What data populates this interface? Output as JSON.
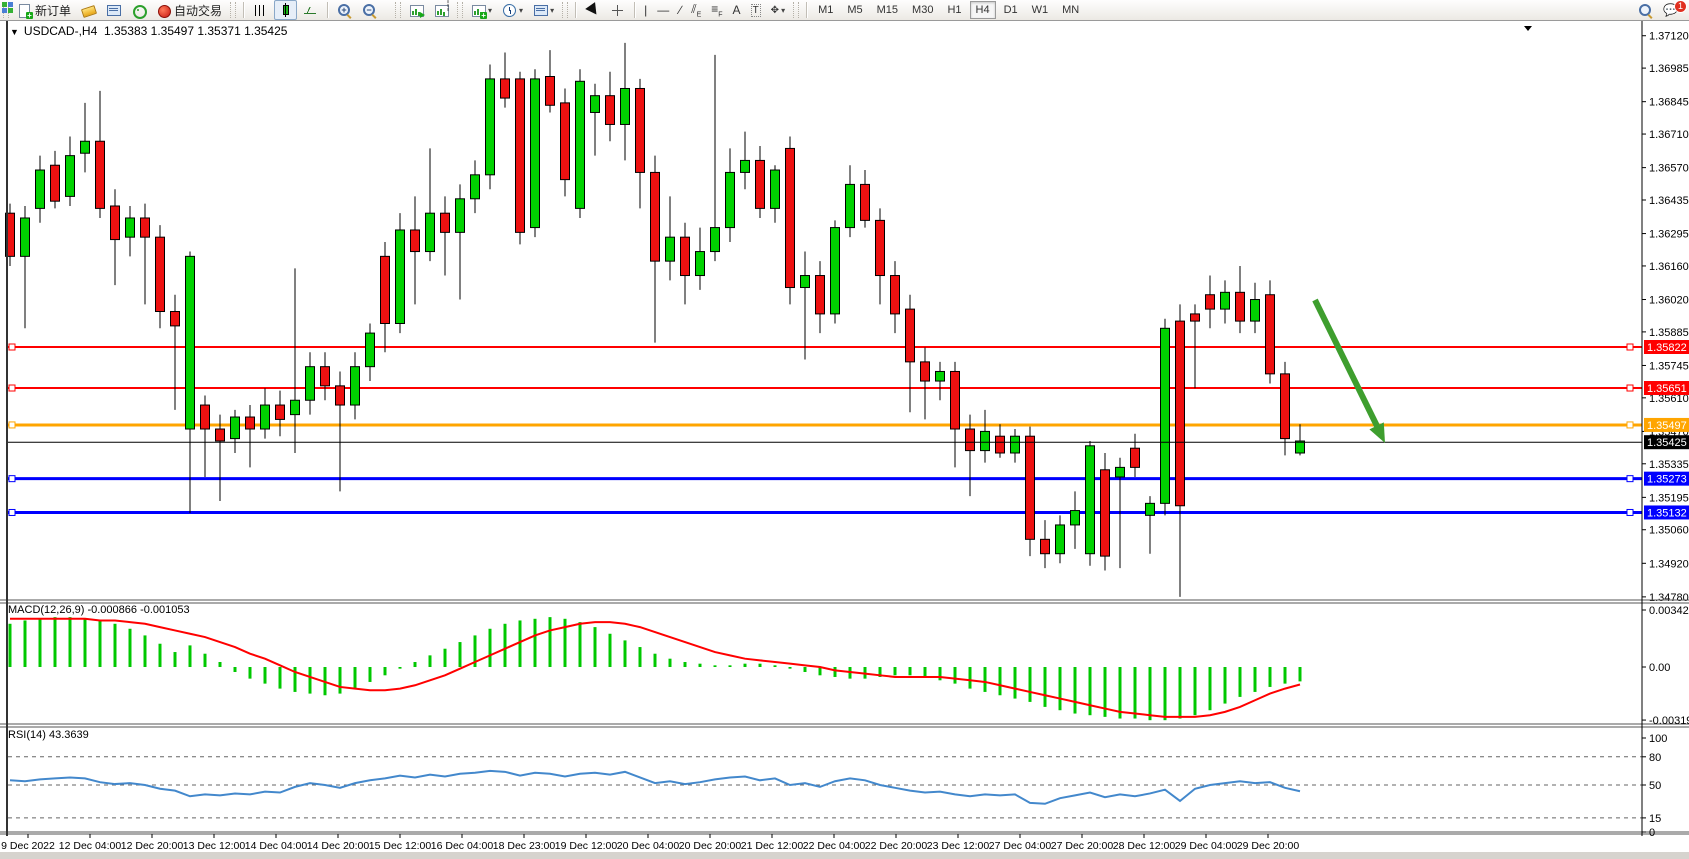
{
  "toolbar": {
    "new_order_label": "新订单",
    "autotrading_label": "自动交易",
    "timeframes": [
      "M1",
      "M5",
      "M15",
      "M30",
      "H1",
      "H4",
      "D1",
      "W1",
      "MN"
    ],
    "active_timeframe": "H4",
    "chat_badge": "1",
    "icons": [
      "new-order-icon",
      "ticket-icon",
      "charts-window-icon",
      "navigator-icon",
      "autotrading-icon",
      "chart-bars-icon",
      "chart-candles-icon",
      "chart-line-icon",
      "zoom-in-icon",
      "zoom-out-icon",
      "tile-windows-icon",
      "indicators-icon",
      "periods-clock-icon",
      "template-icon",
      "cursor-icon",
      "crosshair-icon",
      "vline-icon",
      "hline-icon",
      "trendline-icon",
      "channel-icon",
      "fibonacci-icon",
      "text-icon",
      "text-label-icon",
      "arrows-icon",
      "search-icon",
      "chat-icon"
    ]
  },
  "chart": {
    "collapse_glyph": "▼",
    "title_symbol": "USDCAD-,H4",
    "title_ohlc": "1.35383 1.35497 1.35371 1.35425",
    "macd_label": "MACD(12,26,9) -0.000866 -0.001053",
    "rsi_label": "RSI(14) 43.3639"
  },
  "chart_data": {
    "type": "candlestick",
    "symbol": "USDCAD",
    "period": "H4",
    "current_ohlc": {
      "open": "1.35383",
      "high": "1.35497",
      "low": "1.35371",
      "close": "1.35425"
    },
    "colors": {
      "up": "#00d200",
      "down": "#ee1111",
      "wick": "#000000",
      "macd_hist": "#00c800",
      "macd_signal": "#ff0000",
      "rsi_line": "#4388cc",
      "arrow": "#3e9e2e"
    },
    "price_axis_ticks": [
      "1.37120",
      "1.36985",
      "1.36845",
      "1.36710",
      "1.36570",
      "1.36435",
      "1.36295",
      "1.36160",
      "1.36020",
      "1.35885",
      "1.35745",
      "1.35610",
      "1.35470",
      "1.35335",
      "1.35195",
      "1.35060",
      "1.34920",
      "1.34780"
    ],
    "hlines": [
      {
        "label": "1.35822",
        "color": "#ff0000",
        "width": 2,
        "handles": true
      },
      {
        "label": "1.35651",
        "color": "#ff0000",
        "width": 2,
        "handles": true
      },
      {
        "label": "1.35497",
        "color": "#ffa500",
        "width": 3,
        "handles": true
      },
      {
        "label": "1.35273",
        "color": "#0000ff",
        "width": 3,
        "handles": true
      },
      {
        "label": "1.35132",
        "color": "#0000ff",
        "width": 3,
        "handles": true
      }
    ],
    "current_price_line": {
      "label": "1.35425",
      "color": "#000000"
    },
    "candles_ohlc": [
      [
        1.3638,
        1.3642,
        1.3616,
        1.362
      ],
      [
        1.362,
        1.3641,
        1.359,
        1.3636
      ],
      [
        1.364,
        1.3662,
        1.3634,
        1.3656
      ],
      [
        1.3658,
        1.3664,
        1.364,
        1.3643
      ],
      [
        1.3645,
        1.367,
        1.3641,
        1.3662
      ],
      [
        1.3663,
        1.3684,
        1.3655,
        1.3668
      ],
      [
        1.3668,
        1.3689,
        1.3636,
        1.364
      ],
      [
        1.3641,
        1.3648,
        1.3608,
        1.3627
      ],
      [
        1.3628,
        1.3641,
        1.362,
        1.3636
      ],
      [
        1.3636,
        1.3642,
        1.36,
        1.3628
      ],
      [
        1.3628,
        1.3633,
        1.359,
        1.3597
      ],
      [
        1.3597,
        1.3604,
        1.3556,
        1.3591
      ],
      [
        1.3548,
        1.3622,
        1.3513,
        1.362
      ],
      [
        1.3558,
        1.3562,
        1.3528,
        1.3548
      ],
      [
        1.3548,
        1.3554,
        1.3518,
        1.3543
      ],
      [
        1.3544,
        1.3556,
        1.3538,
        1.3553
      ],
      [
        1.3553,
        1.3558,
        1.3532,
        1.3548
      ],
      [
        1.3548,
        1.3565,
        1.3544,
        1.3558
      ],
      [
        1.3558,
        1.3564,
        1.3545,
        1.3552
      ],
      [
        1.3554,
        1.3615,
        1.3538,
        1.356
      ],
      [
        1.356,
        1.358,
        1.3554,
        1.3574
      ],
      [
        1.3574,
        1.358,
        1.356,
        1.3566
      ],
      [
        1.3566,
        1.3572,
        1.3522,
        1.3558
      ],
      [
        1.3558,
        1.358,
        1.3552,
        1.3574
      ],
      [
        1.3574,
        1.3592,
        1.3568,
        1.3588
      ],
      [
        1.362,
        1.3626,
        1.358,
        1.3592
      ],
      [
        1.3592,
        1.3638,
        1.3588,
        1.3631
      ],
      [
        1.3631,
        1.3645,
        1.36,
        1.3622
      ],
      [
        1.3622,
        1.3665,
        1.3618,
        1.3638
      ],
      [
        1.3638,
        1.3645,
        1.3612,
        1.363
      ],
      [
        1.363,
        1.365,
        1.3602,
        1.3644
      ],
      [
        1.3644,
        1.366,
        1.3638,
        1.3654
      ],
      [
        1.3654,
        1.37,
        1.3648,
        1.3694
      ],
      [
        1.3694,
        1.3705,
        1.3682,
        1.3686
      ],
      [
        1.3694,
        1.3697,
        1.3625,
        1.363
      ],
      [
        1.3632,
        1.3698,
        1.3628,
        1.3694
      ],
      [
        1.3695,
        1.3706,
        1.368,
        1.3683
      ],
      [
        1.3684,
        1.369,
        1.3645,
        1.3652
      ],
      [
        1.364,
        1.3698,
        1.3636,
        1.3693
      ],
      [
        1.368,
        1.3692,
        1.3662,
        1.3687
      ],
      [
        1.3687,
        1.3697,
        1.3668,
        1.3675
      ],
      [
        1.3675,
        1.3709,
        1.366,
        1.369
      ],
      [
        1.369,
        1.3694,
        1.364,
        1.3655
      ],
      [
        1.3655,
        1.3662,
        1.3584,
        1.3618
      ],
      [
        1.3618,
        1.3645,
        1.361,
        1.3628
      ],
      [
        1.3628,
        1.3634,
        1.36,
        1.3612
      ],
      [
        1.3612,
        1.3632,
        1.3606,
        1.3622
      ],
      [
        1.3622,
        1.3704,
        1.3618,
        1.3632
      ],
      [
        1.3632,
        1.3665,
        1.3626,
        1.3655
      ],
      [
        1.3655,
        1.3672,
        1.3648,
        1.366
      ],
      [
        1.366,
        1.3666,
        1.3636,
        1.364
      ],
      [
        1.364,
        1.3658,
        1.3634,
        1.3656
      ],
      [
        1.3665,
        1.367,
        1.36,
        1.3607
      ],
      [
        1.3607,
        1.3622,
        1.3577,
        1.3612
      ],
      [
        1.3612,
        1.3618,
        1.3588,
        1.3596
      ],
      [
        1.3596,
        1.3635,
        1.3592,
        1.3632
      ],
      [
        1.3632,
        1.3658,
        1.3628,
        1.365
      ],
      [
        1.365,
        1.3656,
        1.3632,
        1.3635
      ],
      [
        1.3635,
        1.364,
        1.36,
        1.3612
      ],
      [
        1.3612,
        1.3618,
        1.3588,
        1.3596
      ],
      [
        1.3598,
        1.3604,
        1.3555,
        1.3576
      ],
      [
        1.3576,
        1.3582,
        1.3552,
        1.3568
      ],
      [
        1.3568,
        1.3576,
        1.356,
        1.3572
      ],
      [
        1.3572,
        1.3576,
        1.3532,
        1.3548
      ],
      [
        1.3548,
        1.3554,
        1.352,
        1.3539
      ],
      [
        1.3539,
        1.3556,
        1.3534,
        1.3547
      ],
      [
        1.3545,
        1.355,
        1.3536,
        1.3538
      ],
      [
        1.3538,
        1.3548,
        1.3534,
        1.3545
      ],
      [
        1.3545,
        1.3549,
        1.3495,
        1.3502
      ],
      [
        1.3502,
        1.351,
        1.349,
        1.3496
      ],
      [
        1.3496,
        1.3512,
        1.3492,
        1.3508
      ],
      [
        1.3508,
        1.3522,
        1.3498,
        1.3514
      ],
      [
        1.3496,
        1.3543,
        1.3491,
        1.3541
      ],
      [
        1.3531,
        1.3538,
        1.3489,
        1.3495
      ],
      [
        1.3528,
        1.3536,
        1.349,
        1.3532
      ],
      [
        1.354,
        1.3546,
        1.3528,
        1.3532
      ],
      [
        1.3512,
        1.352,
        1.3496,
        1.3517
      ],
      [
        1.3517,
        1.3594,
        1.3512,
        1.359
      ],
      [
        1.3593,
        1.36,
        1.3478,
        1.3516
      ],
      [
        1.3596,
        1.36,
        1.3565,
        1.3593
      ],
      [
        1.3604,
        1.3612,
        1.359,
        1.3598
      ],
      [
        1.3598,
        1.361,
        1.3592,
        1.3605
      ],
      [
        1.3605,
        1.3616,
        1.3588,
        1.3593
      ],
      [
        1.3593,
        1.3609,
        1.3588,
        1.3602
      ],
      [
        1.3604,
        1.361,
        1.3567,
        1.3571
      ],
      [
        1.3571,
        1.3576,
        1.3537,
        1.3544
      ],
      [
        1.3538,
        1.355,
        1.3537,
        1.3543
      ]
    ],
    "macd": {
      "params": "12,26,9",
      "axis_ticks": [
        "0.003429",
        "0.00",
        "-0.003192"
      ],
      "histogram": [
        0.0026,
        0.0028,
        0.0029,
        0.003,
        0.003,
        0.0029,
        0.0028,
        0.0026,
        0.0023,
        0.0019,
        0.0014,
        0.0009,
        0.0013,
        0.0008,
        0.0003,
        -0.0003,
        -0.0007,
        -0.001,
        -0.0013,
        -0.0015,
        -0.0016,
        -0.0017,
        -0.0016,
        -0.0013,
        -0.0009,
        -0.0005,
        -0.0001,
        0.0003,
        0.0007,
        0.0011,
        0.0015,
        0.0019,
        0.0023,
        0.0026,
        0.0028,
        0.0029,
        0.003,
        0.0029,
        0.0027,
        0.0024,
        0.002,
        0.0016,
        0.0012,
        0.0008,
        0.0005,
        0.0003,
        0.0002,
        0.0001,
        0.0001,
        0.0002,
        0.0002,
        0.0001,
        -0.0001,
        -0.0003,
        -0.0005,
        -0.0006,
        -0.0007,
        -0.0007,
        -0.0006,
        -0.0005,
        -0.0005,
        -0.0006,
        -0.0008,
        -0.001,
        -0.0013,
        -0.0015,
        -0.0017,
        -0.0019,
        -0.0021,
        -0.0024,
        -0.0026,
        -0.0028,
        -0.0029,
        -0.003,
        -0.0031,
        -0.0031,
        -0.0032,
        -0.0032,
        -0.0031,
        -0.0029,
        -0.0026,
        -0.0022,
        -0.0018,
        -0.0015,
        -0.0012,
        -0.001,
        -0.000866
      ],
      "signal": [
        0.0029,
        0.0029,
        0.0029,
        0.0029,
        0.0029,
        0.0029,
        0.0028,
        0.0028,
        0.0027,
        0.0026,
        0.0024,
        0.0022,
        0.002,
        0.0018,
        0.0015,
        0.0012,
        0.0008,
        0.0005,
        0.0001,
        -0.0003,
        -0.0006,
        -0.0009,
        -0.0012,
        -0.0013,
        -0.0014,
        -0.0014,
        -0.0013,
        -0.0011,
        -0.0008,
        -0.0005,
        -0.0001,
        0.0003,
        0.0007,
        0.0011,
        0.0015,
        0.0019,
        0.0022,
        0.0024,
        0.0026,
        0.0027,
        0.0027,
        0.0026,
        0.0024,
        0.0021,
        0.0018,
        0.0015,
        0.0012,
        0.0009,
        0.0007,
        0.0005,
        0.0004,
        0.0003,
        0.0002,
        0.0001,
        0.0,
        -0.0002,
        -0.0003,
        -0.0004,
        -0.0005,
        -0.0006,
        -0.0006,
        -0.0006,
        -0.0006,
        -0.0007,
        -0.0008,
        -0.0009,
        -0.0011,
        -0.0013,
        -0.0015,
        -0.0017,
        -0.0019,
        -0.0021,
        -0.0023,
        -0.0025,
        -0.0027,
        -0.0028,
        -0.0029,
        -0.003,
        -0.003,
        -0.003,
        -0.0029,
        -0.0027,
        -0.0024,
        -0.002,
        -0.0016,
        -0.0013,
        -0.001053
      ]
    },
    "rsi": {
      "params": "14",
      "current": "43.3639",
      "axis_ticks": [
        "100",
        "80",
        "50",
        "15",
        "0"
      ],
      "dashed_levels": [
        80,
        50,
        15
      ],
      "values": [
        55,
        54,
        56,
        57,
        58,
        57,
        53,
        51,
        52,
        50,
        46,
        44,
        38,
        40,
        39,
        41,
        40,
        43,
        42,
        48,
        52,
        50,
        47,
        52,
        55,
        57,
        60,
        58,
        61,
        59,
        62,
        63,
        65,
        64,
        60,
        63,
        62,
        59,
        62,
        63,
        61,
        64,
        58,
        52,
        54,
        51,
        53,
        56,
        58,
        59,
        55,
        57,
        50,
        52,
        48,
        54,
        57,
        55,
        50,
        47,
        44,
        42,
        43,
        40,
        38,
        40,
        39,
        40,
        31,
        30,
        36,
        39,
        42,
        37,
        40,
        38,
        41,
        45,
        33,
        46,
        50,
        52,
        54,
        52,
        53,
        47,
        43.3639
      ]
    },
    "time_axis_labels": [
      "9 Dec 2022",
      "12 Dec 04:00",
      "12 Dec 20:00",
      "13 Dec 12:00",
      "14 Dec 04:00",
      "14 Dec 20:00",
      "15 Dec 12:00",
      "16 Dec 04:00",
      "18 Dec 23:00",
      "19 Dec 12:00",
      "20 Dec 04:00",
      "20 Dec 20:00",
      "21 Dec 12:00",
      "22 Dec 04:00",
      "22 Dec 20:00",
      "23 Dec 12:00",
      "27 Dec 04:00",
      "27 Dec 20:00",
      "28 Dec 12:00",
      "29 Dec 04:00",
      "29 Dec 20:00"
    ],
    "annotations": [
      {
        "type": "arrow",
        "color": "#3e9e2e",
        "direction": "down-right"
      }
    ]
  }
}
